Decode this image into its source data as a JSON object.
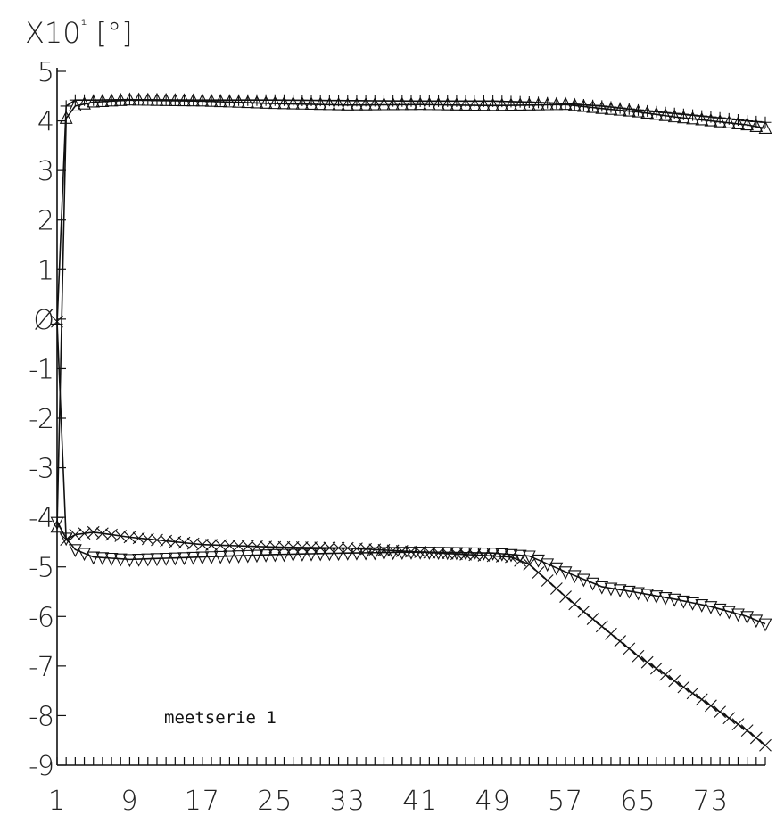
{
  "chart_data": {
    "type": "line",
    "unit_label": "X10¹ [°]",
    "annotation": "meetserie 1",
    "ylim": [
      -9,
      5
    ],
    "yticks": [
      "5",
      "4",
      "3",
      "2",
      "1",
      "Ø",
      "-1",
      "-2",
      "-3",
      "-4",
      "-5",
      "-6",
      "-7",
      "-8",
      "-9"
    ],
    "xlim": [
      1,
      79
    ],
    "xticks": [
      "1",
      "9",
      "17",
      "25",
      "33",
      "41",
      "49",
      "57",
      "65",
      "73"
    ],
    "series": [
      {
        "marker": "plus",
        "x": [
          1,
          2,
          3,
          5,
          9,
          17,
          25,
          33,
          41,
          49,
          53,
          57,
          61,
          65,
          69,
          73,
          77,
          79
        ],
        "y": [
          -0.1,
          4.3,
          4.42,
          4.42,
          4.43,
          4.42,
          4.42,
          4.41,
          4.4,
          4.4,
          4.38,
          4.35,
          4.3,
          4.22,
          4.15,
          4.08,
          4.0,
          3.97
        ]
      },
      {
        "marker": "triangle-up",
        "x": [
          1,
          2,
          3,
          5,
          9,
          17,
          25,
          33,
          41,
          49,
          53,
          57,
          61,
          65,
          69,
          73,
          77,
          79
        ],
        "y": [
          -4.2,
          4.05,
          4.3,
          4.38,
          4.42,
          4.4,
          4.35,
          4.32,
          4.33,
          4.31,
          4.32,
          4.33,
          4.25,
          4.18,
          4.08,
          4.0,
          3.92,
          3.85
        ]
      },
      {
        "marker": "x",
        "x": [
          1,
          2,
          3,
          5,
          9,
          17,
          25,
          33,
          41,
          49,
          51,
          53,
          57,
          61,
          65,
          69,
          73,
          77,
          79
        ],
        "y": [
          -0.05,
          -4.45,
          -4.35,
          -4.3,
          -4.4,
          -4.55,
          -4.6,
          -4.62,
          -4.7,
          -4.78,
          -4.8,
          -4.95,
          -5.6,
          -6.2,
          -6.8,
          -7.3,
          -7.8,
          -8.3,
          -8.6
        ]
      },
      {
        "marker": "triangle-down",
        "x": [
          1,
          2,
          3,
          5,
          9,
          17,
          25,
          33,
          41,
          49,
          53,
          57,
          61,
          65,
          69,
          73,
          77,
          79
        ],
        "y": [
          -4.1,
          -4.42,
          -4.65,
          -4.8,
          -4.85,
          -4.8,
          -4.75,
          -4.72,
          -4.7,
          -4.72,
          -4.78,
          -5.1,
          -5.4,
          -5.52,
          -5.65,
          -5.8,
          -6.0,
          -6.15
        ]
      }
    ]
  }
}
